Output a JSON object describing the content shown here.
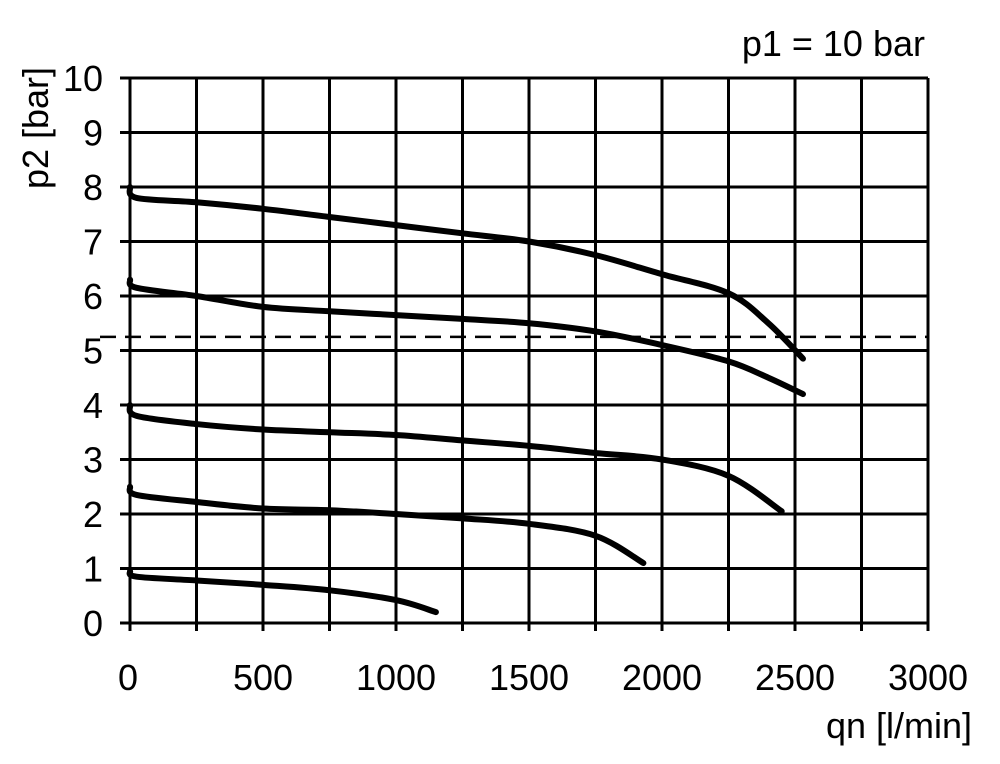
{
  "chart_data": {
    "type": "line",
    "title": "",
    "annotation": "p1 = 10 bar",
    "xlabel": "qn [l/min]",
    "ylabel": "p2 [bar]",
    "xlim": [
      0,
      3000
    ],
    "ylim": [
      0,
      10
    ],
    "grid": true,
    "x_grid_step": 250,
    "x_ticks": [
      0,
      500,
      1000,
      1500,
      2000,
      2500,
      3000
    ],
    "y_ticks": [
      0,
      1,
      2,
      3,
      4,
      5,
      6,
      7,
      8,
      9,
      10
    ],
    "reference_line": {
      "style": "dashed",
      "y": 5.25
    },
    "series": [
      {
        "points": [
          [
            0,
            8.0
          ],
          [
            25,
            7.8
          ],
          [
            250,
            7.72
          ],
          [
            500,
            7.6
          ],
          [
            750,
            7.45
          ],
          [
            1000,
            7.3
          ],
          [
            1250,
            7.15
          ],
          [
            1500,
            7.0
          ],
          [
            1750,
            6.75
          ],
          [
            2000,
            6.4
          ],
          [
            2250,
            6.05
          ],
          [
            2400,
            5.5
          ],
          [
            2530,
            4.85
          ]
        ]
      },
      {
        "points": [
          [
            0,
            6.3
          ],
          [
            25,
            6.15
          ],
          [
            250,
            6.0
          ],
          [
            500,
            5.8
          ],
          [
            750,
            5.72
          ],
          [
            1000,
            5.65
          ],
          [
            1250,
            5.58
          ],
          [
            1500,
            5.5
          ],
          [
            1750,
            5.35
          ],
          [
            2000,
            5.1
          ],
          [
            2250,
            4.8
          ],
          [
            2400,
            4.5
          ],
          [
            2530,
            4.2
          ]
        ]
      },
      {
        "points": [
          [
            0,
            4.0
          ],
          [
            25,
            3.8
          ],
          [
            250,
            3.65
          ],
          [
            500,
            3.55
          ],
          [
            750,
            3.5
          ],
          [
            1000,
            3.45
          ],
          [
            1250,
            3.35
          ],
          [
            1500,
            3.25
          ],
          [
            1750,
            3.12
          ],
          [
            2000,
            3.0
          ],
          [
            2250,
            2.7
          ],
          [
            2450,
            2.05
          ]
        ]
      },
      {
        "points": [
          [
            0,
            2.5
          ],
          [
            25,
            2.35
          ],
          [
            250,
            2.22
          ],
          [
            500,
            2.1
          ],
          [
            750,
            2.07
          ],
          [
            1000,
            2.0
          ],
          [
            1250,
            1.92
          ],
          [
            1500,
            1.82
          ],
          [
            1750,
            1.6
          ],
          [
            1930,
            1.1
          ]
        ]
      },
      {
        "points": [
          [
            0,
            0.95
          ],
          [
            25,
            0.85
          ],
          [
            250,
            0.78
          ],
          [
            500,
            0.7
          ],
          [
            750,
            0.6
          ],
          [
            1000,
            0.42
          ],
          [
            1150,
            0.2
          ]
        ]
      }
    ]
  }
}
